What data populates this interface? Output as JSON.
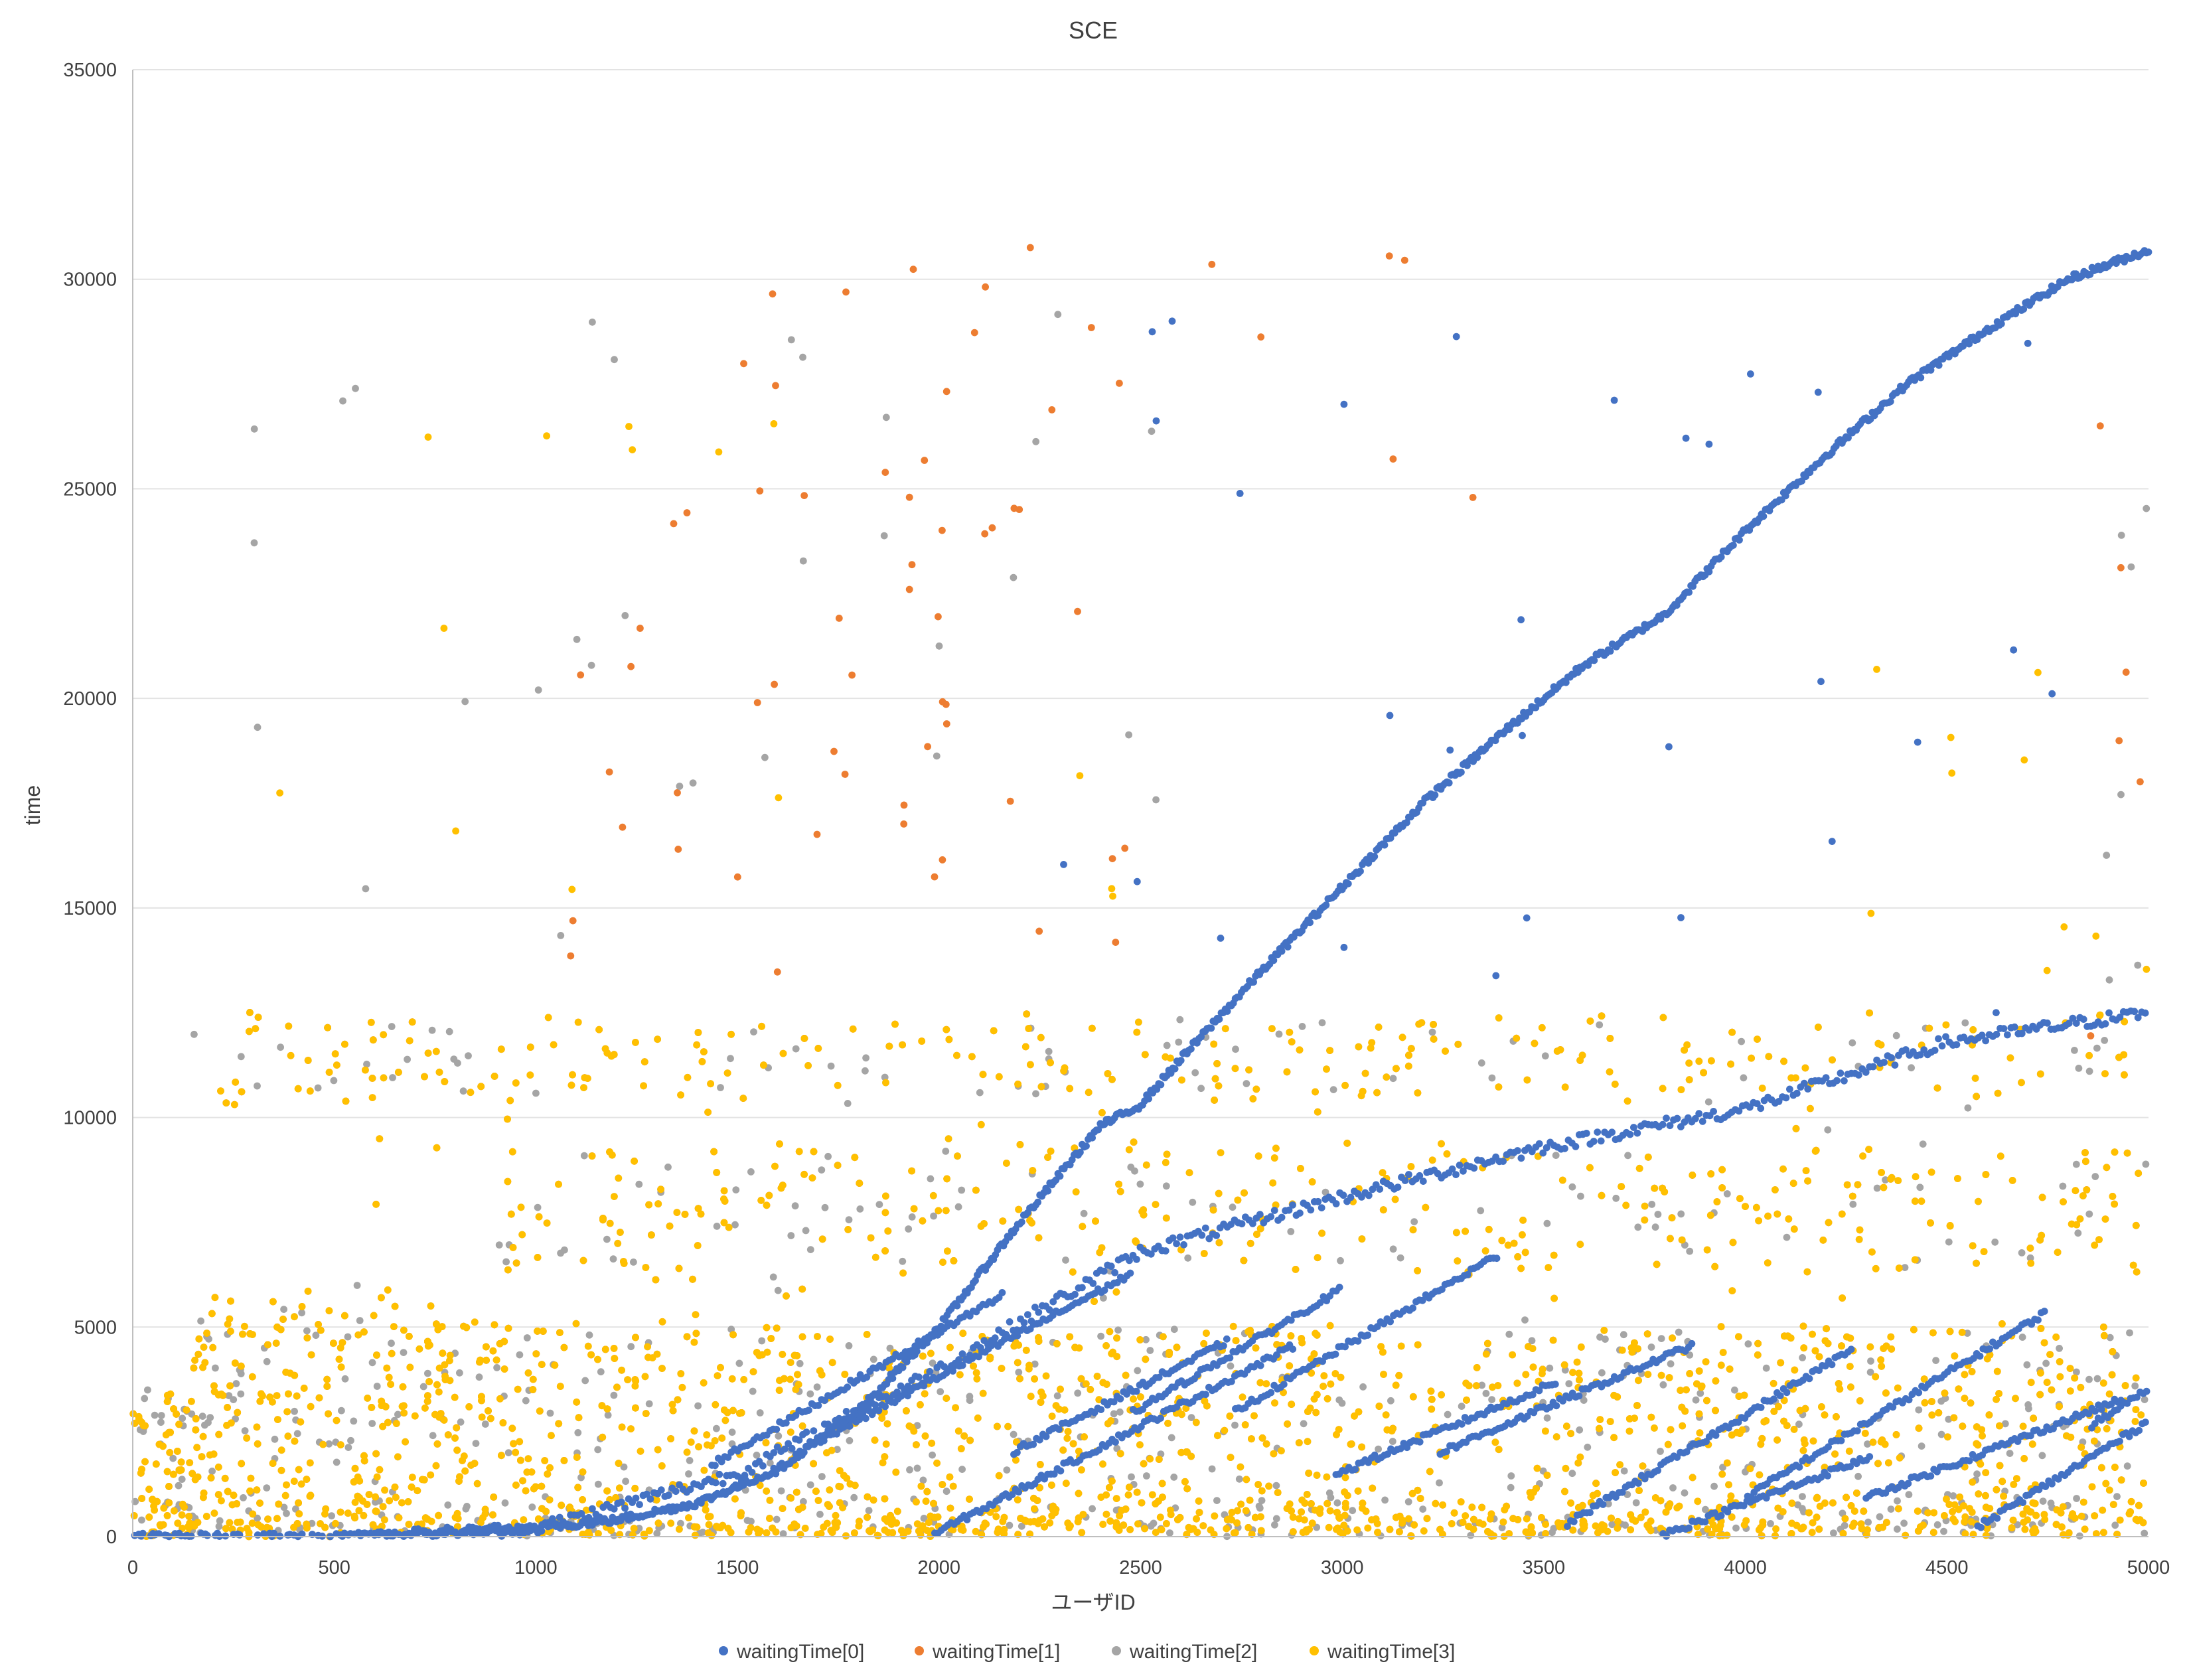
{
  "chart_data": {
    "type": "scatter",
    "title": "SCE",
    "xlabel": "ユーザID",
    "ylabel": "time",
    "xlim": [
      0,
      5000
    ],
    "ylim": [
      0,
      35000
    ],
    "xticks": [
      "0",
      "500",
      "1000",
      "1500",
      "2000",
      "2500",
      "3000",
      "3500",
      "4000",
      "4500",
      "5000"
    ],
    "yticks": [
      "0",
      "5000",
      "10000",
      "15000",
      "20000",
      "25000",
      "30000",
      "35000"
    ],
    "grid": "horizontal",
    "legend_position": "bottom",
    "series": [
      {
        "name": "waitingTime[0]",
        "color": "#4472C4",
        "trend_main": [
          [
            0,
            0
          ],
          [
            500,
            0
          ],
          [
            800,
            100
          ],
          [
            1000,
            200
          ],
          [
            1200,
            400
          ],
          [
            1400,
            800
          ],
          [
            1600,
            1600
          ],
          [
            1800,
            3000
          ],
          [
            2000,
            5000
          ],
          [
            2200,
            7500
          ],
          [
            2400,
            9800
          ],
          [
            2500,
            10300
          ],
          [
            2600,
            11400
          ],
          [
            2800,
            13500
          ],
          [
            3000,
            15500
          ],
          [
            3200,
            17500
          ],
          [
            3400,
            19200
          ],
          [
            3600,
            20800
          ],
          [
            3800,
            22000
          ],
          [
            4000,
            24000
          ],
          [
            4200,
            25800
          ],
          [
            4400,
            27500
          ],
          [
            4600,
            28800
          ],
          [
            4800,
            30000
          ],
          [
            5000,
            30700
          ]
        ],
        "trend_secondary": [
          [
            600,
            0
          ],
          [
            1000,
            200
          ],
          [
            1500,
            1500
          ],
          [
            2000,
            4000
          ],
          [
            2500,
            6800
          ],
          [
            3000,
            8100
          ],
          [
            3500,
            9300
          ],
          [
            4000,
            10200
          ],
          [
            4500,
            11800
          ],
          [
            5000,
            12500
          ]
        ]
      },
      {
        "name": "waitingTime[1]",
        "color": "#ED7D31"
      },
      {
        "name": "waitingTime[2]",
        "color": "#A5A5A5"
      },
      {
        "name": "waitingTime[3]",
        "color": "#FFC000"
      }
    ]
  }
}
